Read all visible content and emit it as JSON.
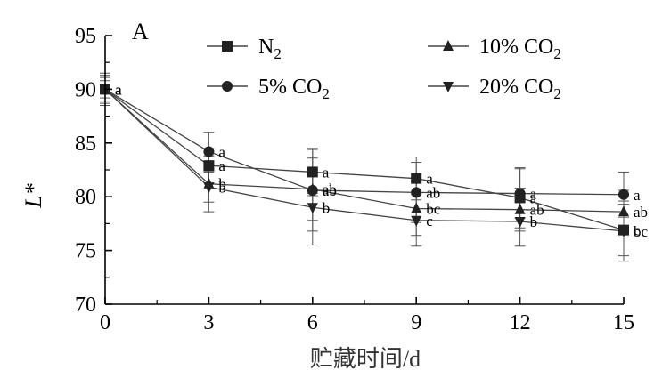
{
  "chart_data": {
    "type": "line",
    "panel_label": "A",
    "xlabel": "贮藏时间/d",
    "ylabel": "L*",
    "x": [
      0,
      3,
      6,
      9,
      12,
      15
    ],
    "xticks": [
      "0",
      "3",
      "6",
      "9",
      "12",
      "15"
    ],
    "ylim": [
      70,
      95
    ],
    "yticks": [
      "70",
      "75",
      "80",
      "85",
      "90",
      "95"
    ],
    "grid": false,
    "legend_position": "top",
    "series": [
      {
        "name": "N2",
        "marker": "square",
        "values": [
          90.0,
          82.9,
          82.3,
          81.7,
          79.9,
          76.9
        ],
        "error": [
          1.3,
          1.6,
          2.2,
          2.0,
          2.8,
          2.4
        ],
        "labels": [
          "a",
          "a",
          "a",
          "a",
          "a",
          "c"
        ]
      },
      {
        "name": "5% CO2",
        "marker": "circle",
        "values": [
          90.0,
          84.2,
          80.6,
          80.4,
          80.3,
          80.2
        ],
        "error": [
          1.5,
          1.8,
          3.8,
          2.8,
          2.3,
          2.1
        ],
        "labels": [
          "a",
          "a",
          "ab",
          "ab",
          "a",
          "a"
        ]
      },
      {
        "name": "10% CO2",
        "marker": "triangle-up",
        "values": [
          90.0,
          81.2,
          80.7,
          78.9,
          78.8,
          78.6
        ],
        "error": [
          0.8,
          2.6,
          2.9,
          2.5,
          2.0,
          2.0
        ],
        "labels": [
          "a",
          "b",
          "ab",
          "bc",
          "ab",
          "ab"
        ]
      },
      {
        "name": "20% CO2",
        "marker": "triangle-down",
        "values": [
          90.0,
          80.9,
          79.0,
          77.8,
          77.7,
          76.8
        ],
        "error": [
          1.1,
          1.4,
          3.5,
          2.4,
          2.3,
          2.8
        ],
        "labels": [
          "a",
          "b",
          "b",
          "c",
          "b",
          "bc"
        ]
      }
    ]
  }
}
